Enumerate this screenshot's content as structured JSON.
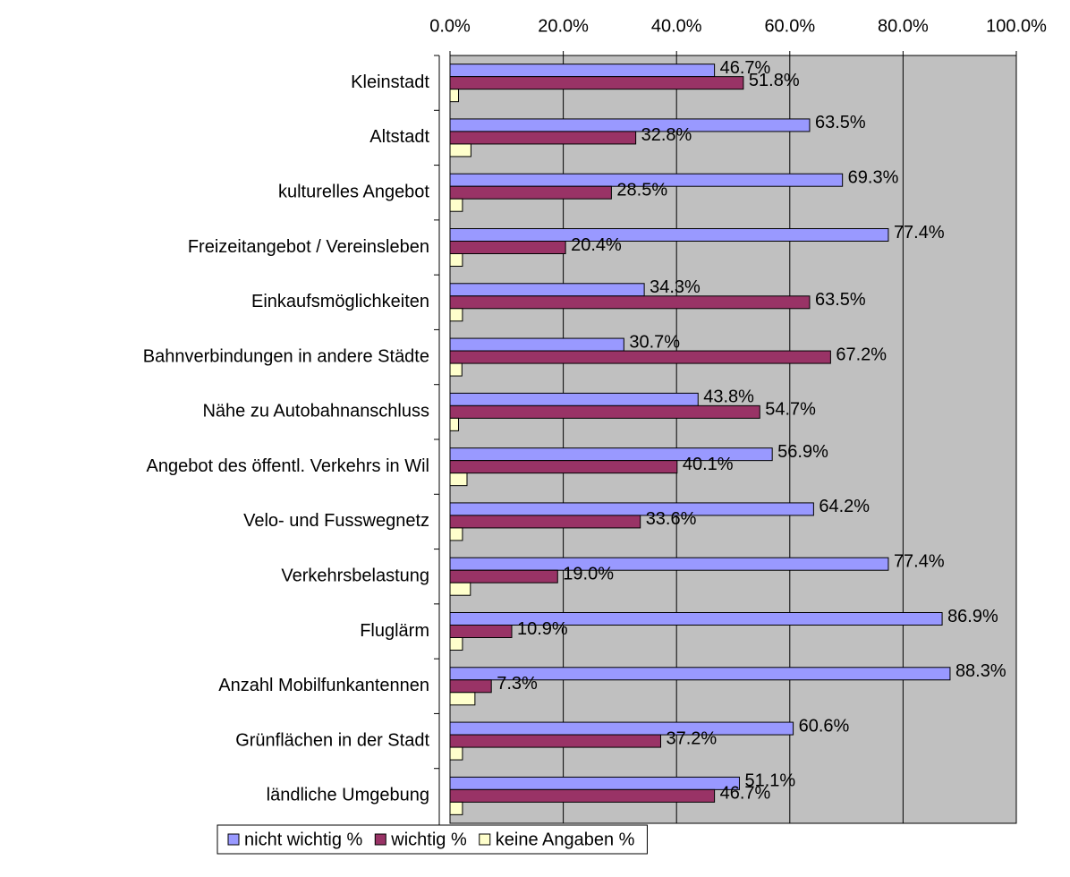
{
  "chart_data": {
    "type": "hbar",
    "categories": [
      "Kleinstadt",
      "Altstadt",
      "kulturelles Angebot",
      "Freizeitangebot / Vereinsleben",
      "Einkaufsmöglichkeiten",
      "Bahnverbindungen in andere Städte",
      "Nähe zu Autobahnanschluss",
      "Angebot des öffentl. Verkehrs in Wil",
      "Velo- und Fusswegnetz",
      "Verkehrsbelastung",
      "Fluglärm",
      "Anzahl Mobilfunkantennen",
      "Grünflächen in der Stadt",
      "ländliche Umgebung"
    ],
    "series": [
      {
        "name": "nicht wichtig %",
        "color": "#9999ff",
        "values": [
          46.7,
          63.5,
          69.3,
          77.4,
          34.3,
          30.7,
          43.8,
          56.9,
          64.2,
          77.4,
          86.9,
          88.3,
          60.6,
          51.1
        ],
        "value_labels": [
          "46.7%",
          "63.5%",
          "69.3%",
          "77.4%",
          "34.3%",
          "30.7%",
          "43.8%",
          "56.9%",
          "64.2%",
          "77.4%",
          "86.9%",
          "88.3%",
          "60.6%",
          "51.1%"
        ]
      },
      {
        "name": "wichtig %",
        "color": "#993366",
        "values": [
          51.8,
          32.8,
          28.5,
          20.4,
          63.5,
          67.2,
          54.7,
          40.1,
          33.6,
          19.0,
          10.9,
          7.3,
          37.2,
          46.7
        ],
        "value_labels": [
          "51.8%",
          "32.8%",
          "28.5%",
          "20.4%",
          "63.5%",
          "67.2%",
          "54.7%",
          "40.1%",
          "33.6%",
          "19.0%",
          "10.9%",
          "7.3%",
          "37.2%",
          "46.7%"
        ]
      },
      {
        "name": "keine Angaben %",
        "color": "#ffffcc",
        "values": [
          1.5,
          3.7,
          2.2,
          2.2,
          2.2,
          2.1,
          1.5,
          3.0,
          2.2,
          3.6,
          2.2,
          4.4,
          2.2,
          2.2
        ]
      }
    ],
    "xlim": [
      0,
      100
    ],
    "xticks": [
      {
        "value": 0,
        "label": "0.0%"
      },
      {
        "value": 20,
        "label": "20.0%"
      },
      {
        "value": 40,
        "label": "40.0%"
      },
      {
        "value": 60,
        "label": "60.0%"
      },
      {
        "value": 80,
        "label": "80.0%"
      },
      {
        "value": 100,
        "label": "100.0%"
      }
    ],
    "grid": true,
    "plot_background": "#c0c0c0",
    "legend": "bottom"
  }
}
